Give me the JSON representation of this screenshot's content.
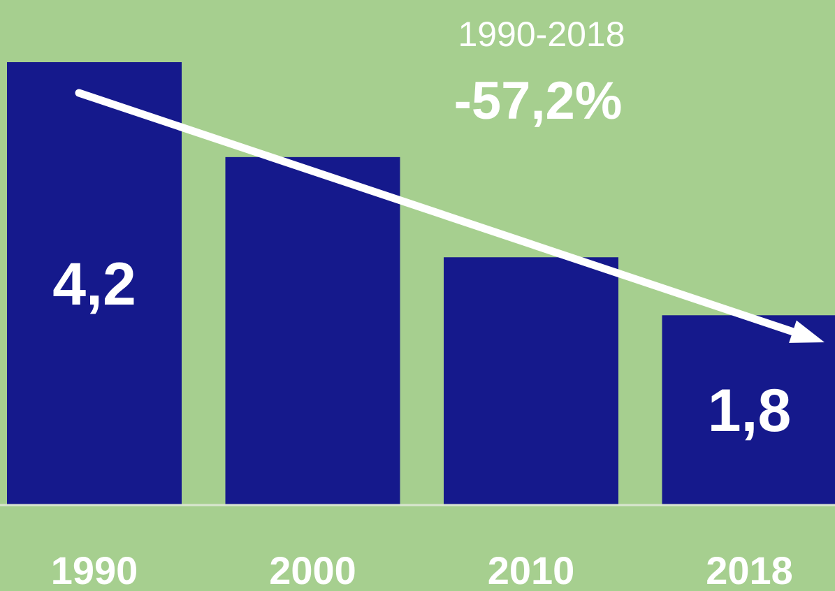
{
  "chart_data": {
    "type": "bar",
    "title": "",
    "xlabel": "",
    "ylabel": "",
    "categories": [
      "1990",
      "2000",
      "2010",
      "2018"
    ],
    "values": [
      4.2,
      3.3,
      2.35,
      1.8
    ],
    "ylim": [
      0,
      4.2
    ],
    "grid": false,
    "legend": "none",
    "data_labels": [
      {
        "category": "1990",
        "text": "4,2"
      },
      {
        "category": "2018",
        "text": "1,8"
      }
    ],
    "annotations": {
      "period": "1990-2018",
      "change": "-57,2%"
    },
    "trend_arrow": {
      "from": "1990",
      "to": "2018",
      "direction": "down"
    },
    "colors": {
      "background": "#a6cf8f",
      "bar": "#15198c",
      "text": "#ffffff",
      "axis_line": "#d9e6d0"
    }
  }
}
